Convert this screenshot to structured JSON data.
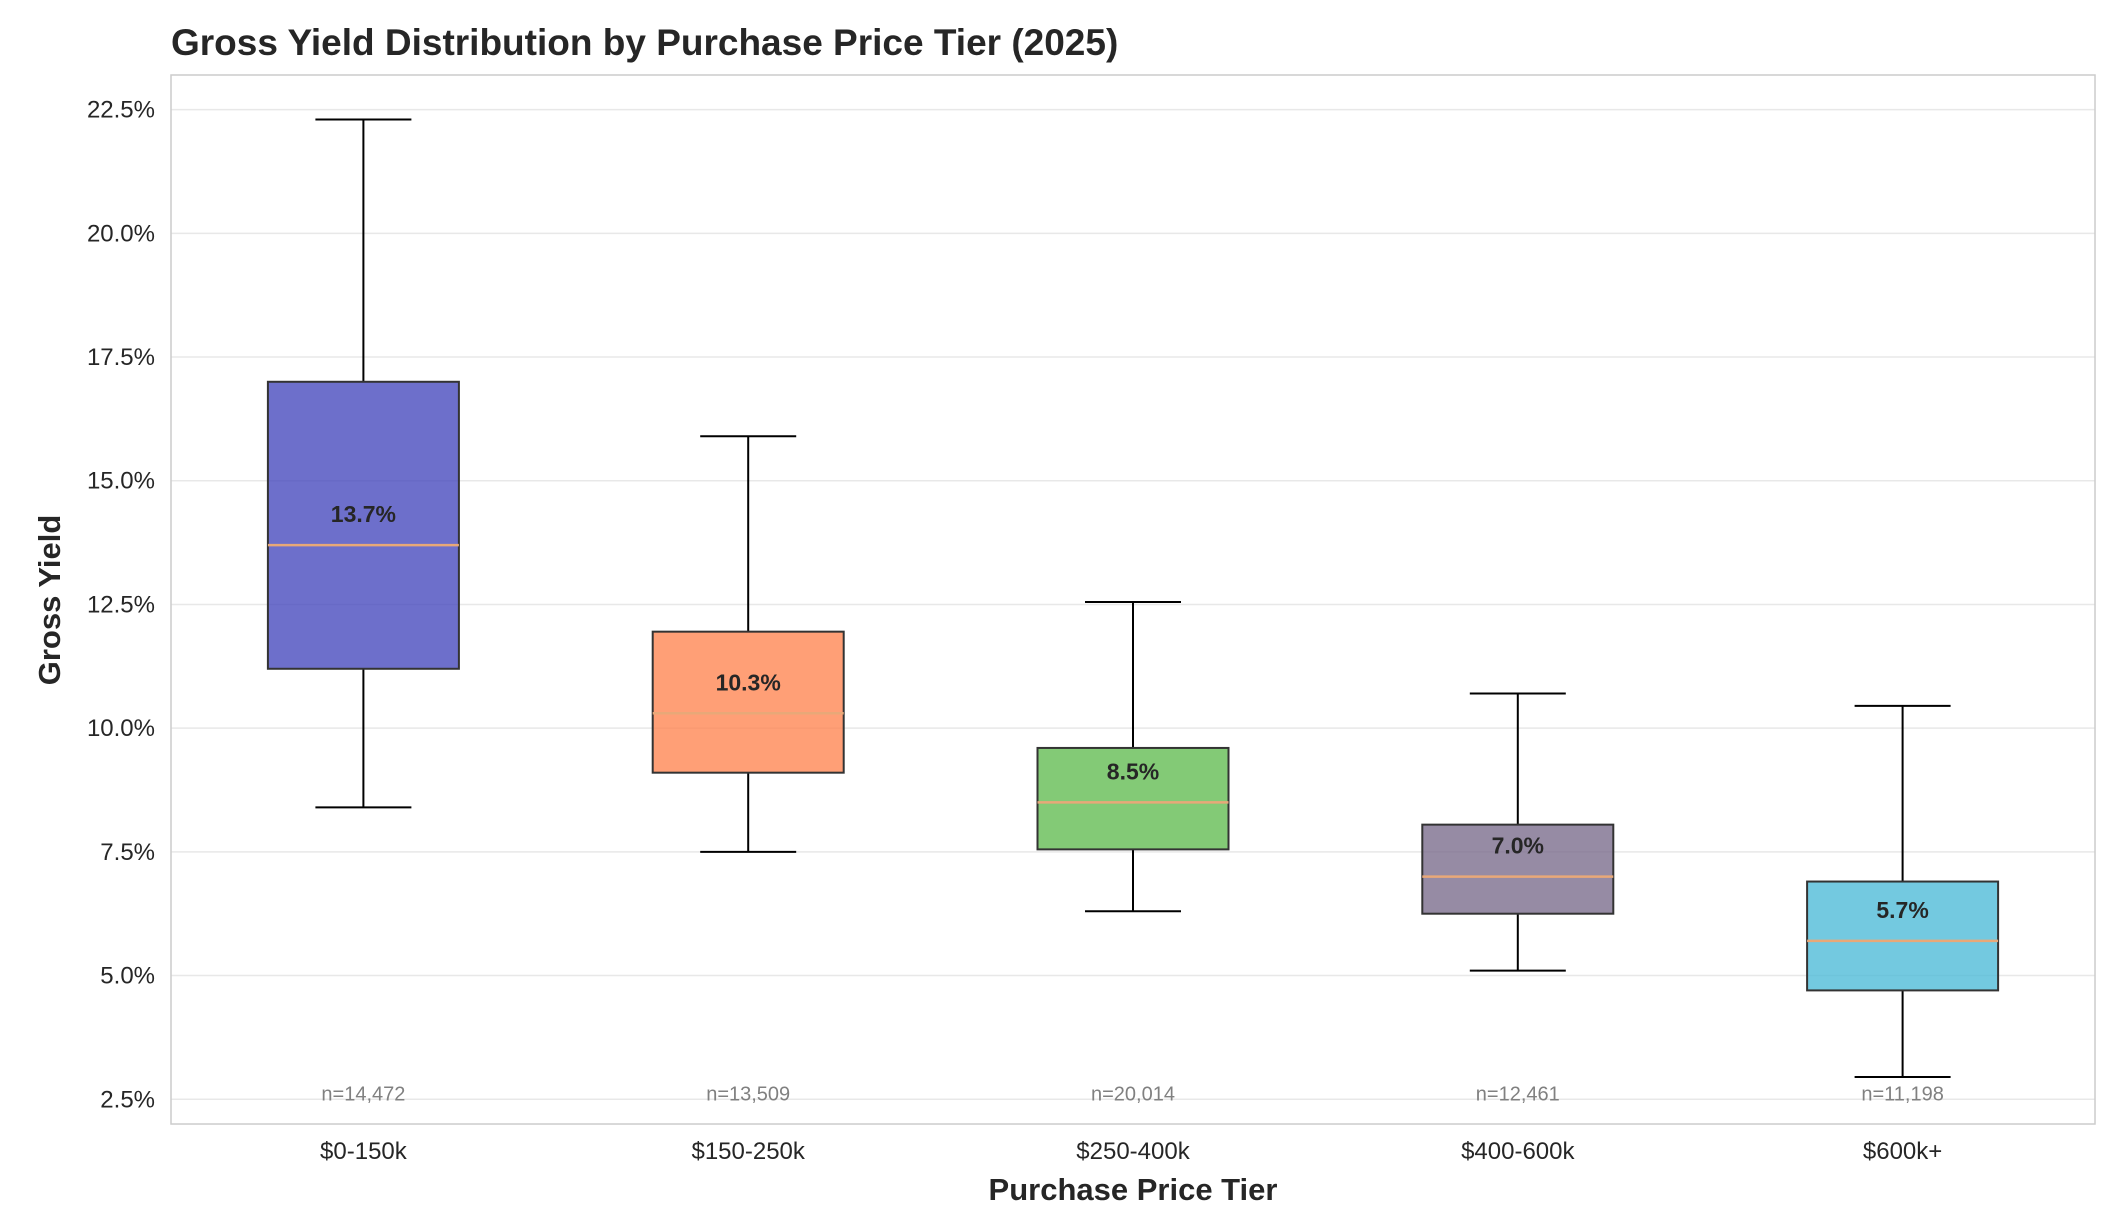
{
  "chart_data": {
    "type": "box",
    "title": "Gross Yield Distribution by Purchase Price Tier (2025)",
    "xlabel": "Purchase Price Tier",
    "ylabel": "Gross Yield",
    "ylim": [
      2.0,
      23.2
    ],
    "yticks": [
      2.5,
      5.0,
      7.5,
      10.0,
      12.5,
      15.0,
      17.5,
      20.0,
      22.5
    ],
    "ytick_labels": [
      "2.5%",
      "5.0%",
      "7.5%",
      "10.0%",
      "12.5%",
      "15.0%",
      "17.5%",
      "20.0%",
      "22.5%"
    ],
    "grid": true,
    "categories": [
      "$0-150k",
      "$150-250k",
      "$250-400k",
      "$400-600k",
      "$600k+"
    ],
    "boxes": [
      {
        "category": "$0-150k",
        "whisker_low": 8.4,
        "q1": 11.2,
        "median": 13.7,
        "q3": 17.0,
        "whisker_high": 22.3,
        "median_label": "13.7%",
        "n_label": "n=14,472",
        "color": "#4446bd"
      },
      {
        "category": "$150-250k",
        "whisker_low": 7.5,
        "q1": 9.1,
        "median": 10.3,
        "q3": 11.95,
        "whisker_high": 15.9,
        "median_label": "10.3%",
        "n_label": "n=13,509",
        "color": "#ff8450"
      },
      {
        "category": "$250-400k",
        "whisker_low": 6.3,
        "q1": 7.55,
        "median": 8.5,
        "q3": 9.6,
        "whisker_high": 12.55,
        "median_label": "8.5%",
        "n_label": "n=20,014",
        "color": "#60bb50"
      },
      {
        "category": "$400-600k",
        "whisker_low": 5.1,
        "q1": 6.25,
        "median": 7.0,
        "q3": 8.05,
        "whisker_high": 10.7,
        "median_label": "7.0%",
        "n_label": "n=12,461",
        "color": "#796a8a"
      },
      {
        "category": "$600k+",
        "whisker_low": 2.95,
        "q1": 4.7,
        "median": 5.7,
        "q3": 6.9,
        "whisker_high": 10.45,
        "median_label": "5.7%",
        "n_label": "n=11,198",
        "color": "#4bbad7"
      }
    ],
    "median_line_color": "#e8a878"
  }
}
